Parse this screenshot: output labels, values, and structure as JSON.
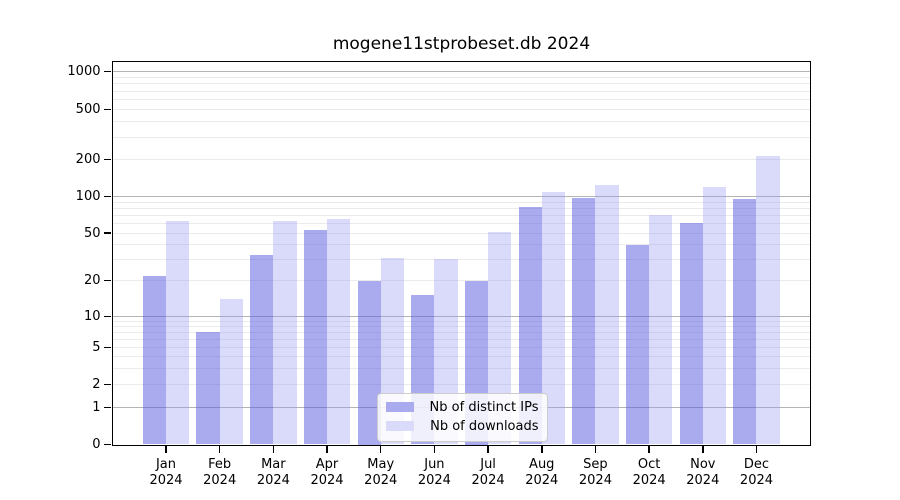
{
  "chart_data": {
    "type": "bar",
    "title": "mogene11stprobeset.db 2024",
    "categories": [
      "Jan",
      "Feb",
      "Mar",
      "Apr",
      "May",
      "Jun",
      "Jul",
      "Aug",
      "Sep",
      "Oct",
      "Nov",
      "Dec"
    ],
    "year": "2024",
    "series": [
      {
        "name": "Nb of distinct IPs",
        "swatch_color": "#aaaaef",
        "fill": "rgba(85,85,224,0.5)",
        "values": [
          22,
          7,
          33,
          53,
          20,
          15,
          20,
          82,
          98,
          40,
          61,
          95
        ]
      },
      {
        "name": "Nb of downloads",
        "swatch_color": "#dadafa",
        "fill": "rgba(150,150,240,0.35)",
        "values": [
          63,
          14,
          63,
          65,
          31,
          30,
          51,
          108,
          125,
          70,
          120,
          215
        ]
      }
    ],
    "yticks": [
      0,
      1,
      2,
      5,
      10,
      20,
      50,
      100,
      200,
      500,
      1000
    ],
    "scale": "symlog",
    "ylim": [
      0,
      1300
    ],
    "grid": true,
    "legend_position": "bottom-center"
  },
  "colors": {
    "major_grid": "#b4b4b4",
    "minor_grid": "#ebebeb",
    "spine": "#000000",
    "legend_border": "#cccccc",
    "bar_dark": "#aaaaef",
    "bar_light": "#dadafa"
  }
}
